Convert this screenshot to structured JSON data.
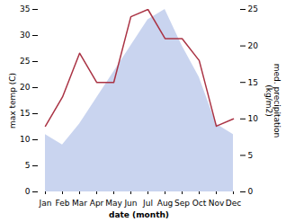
{
  "chart_data": {
    "type": "combo",
    "categories": [
      "Jan",
      "Feb",
      "Mar",
      "Apr",
      "May",
      "Jun",
      "Jul",
      "Aug",
      "Sep",
      "Oct",
      "Nov",
      "Dec"
    ],
    "xlabel": "date (month)",
    "ylabel": "max temp (C)",
    "y2label": "med. precipitation\n(kg/m2)",
    "ylim": [
      0,
      35
    ],
    "yticks": [
      0,
      5,
      10,
      15,
      20,
      25,
      30,
      35
    ],
    "y2lim": [
      0,
      25
    ],
    "y2ticks": [
      0,
      5,
      10,
      15,
      20,
      25
    ],
    "series": [
      {
        "type": "area",
        "color": "#c0ccec",
        "values": [
          11,
          9,
          13,
          18,
          23,
          28,
          33,
          35,
          28,
          22,
          13,
          11
        ]
      },
      {
        "type": "line",
        "color": "#aa3344",
        "axis": "y2",
        "values": [
          9,
          13,
          19,
          15,
          15,
          24,
          25,
          21,
          21,
          18,
          9,
          10
        ]
      }
    ]
  }
}
